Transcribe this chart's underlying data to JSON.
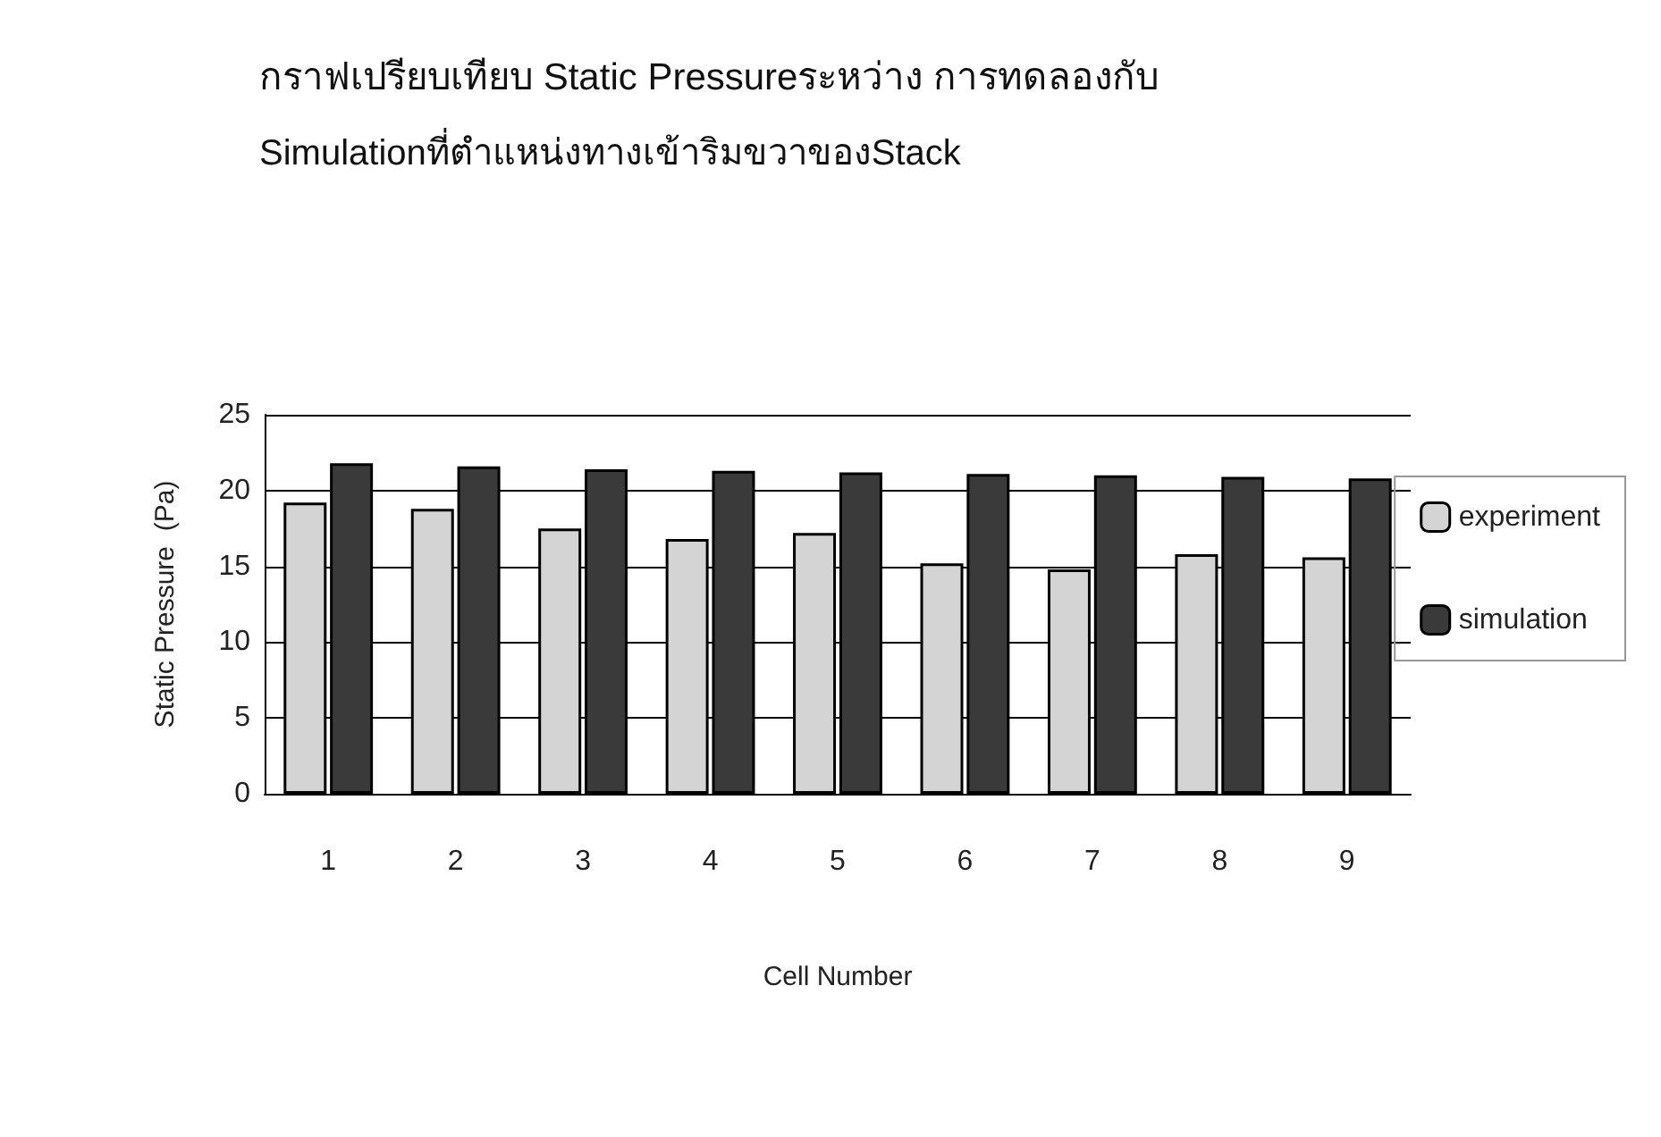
{
  "chart_data": {
    "type": "bar",
    "title": "กราฟเปรียบเทียบ Static Pressureระหว่าง การทดลองกับ",
    "subtitle": "Simulationที่ตำแหน่งทางเข้าริมขวาของStack",
    "xlabel": "Cell Number",
    "ylabel": "Static Pressure  (Pa)",
    "categories": [
      "1",
      "2",
      "3",
      "4",
      "5",
      "6",
      "7",
      "8",
      "9"
    ],
    "series": [
      {
        "name": "experiment",
        "color": "#d4d4d4",
        "values": [
          19.2,
          18.8,
          17.5,
          16.8,
          17.2,
          15.2,
          14.8,
          15.8,
          15.6
        ]
      },
      {
        "name": "simulation",
        "color": "#3a3a3a",
        "values": [
          21.8,
          21.6,
          21.4,
          21.3,
          21.2,
          21.1,
          21.0,
          20.9,
          20.8
        ]
      }
    ],
    "ylim": [
      0,
      25
    ],
    "yticks": [
      0,
      5,
      10,
      15,
      20,
      25
    ],
    "grid": "y",
    "legend": "right"
  }
}
